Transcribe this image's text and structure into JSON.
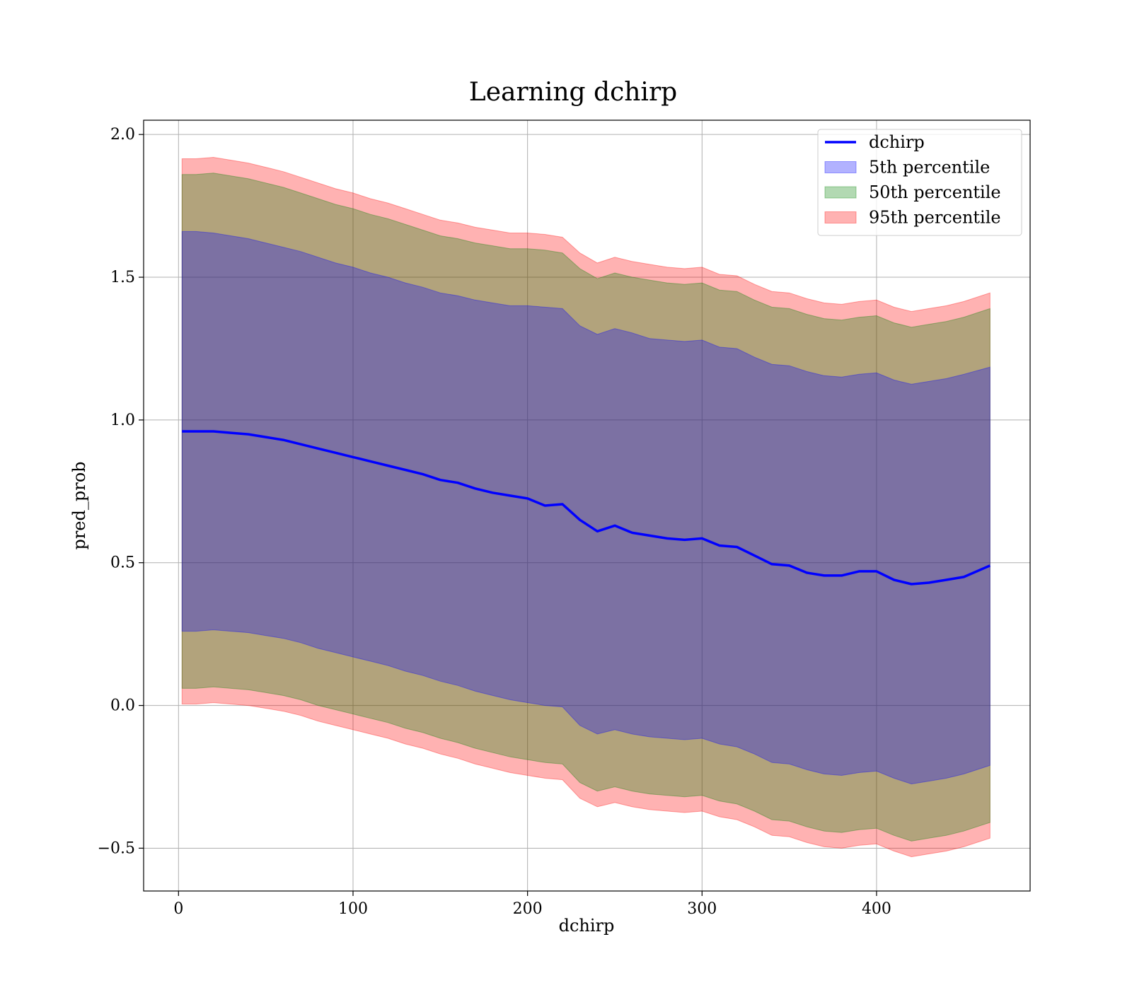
{
  "chart_data": {
    "type": "area",
    "title": "Learning dchirp",
    "xlabel": "dchirp",
    "ylabel": "pred_prob",
    "xlim": [
      -20,
      488
    ],
    "ylim": [
      -0.65,
      2.05
    ],
    "xticks": [
      0,
      100,
      200,
      300,
      400
    ],
    "yticks": [
      -0.5,
      0.0,
      0.5,
      1.0,
      1.5,
      2.0
    ],
    "xtick_labels": [
      "0",
      "100",
      "200",
      "300",
      "400"
    ],
    "ytick_labels": [
      "−0.5",
      "0.0",
      "0.5",
      "1.0",
      "1.5",
      "2.0"
    ],
    "grid": true,
    "legend_position": "top-right",
    "x": [
      2,
      10,
      20,
      30,
      40,
      50,
      60,
      70,
      80,
      90,
      100,
      110,
      120,
      130,
      140,
      150,
      160,
      170,
      180,
      190,
      200,
      210,
      220,
      230,
      240,
      250,
      260,
      270,
      280,
      290,
      300,
      310,
      320,
      330,
      340,
      350,
      360,
      370,
      380,
      390,
      400,
      410,
      420,
      430,
      440,
      450,
      465
    ],
    "series": [
      {
        "name": "dchirp",
        "kind": "line",
        "color": "#0000ff",
        "values": [
          0.96,
          0.96,
          0.96,
          0.955,
          0.95,
          0.94,
          0.93,
          0.915,
          0.9,
          0.885,
          0.87,
          0.855,
          0.84,
          0.825,
          0.81,
          0.79,
          0.78,
          0.76,
          0.745,
          0.735,
          0.725,
          0.7,
          0.705,
          0.65,
          0.61,
          0.63,
          0.605,
          0.595,
          0.585,
          0.58,
          0.585,
          0.56,
          0.555,
          0.525,
          0.495,
          0.49,
          0.465,
          0.455,
          0.455,
          0.47,
          0.47,
          0.44,
          0.425,
          0.43,
          0.44,
          0.45,
          0.49
        ]
      },
      {
        "name": "5th percentile",
        "kind": "band",
        "color": "#0000ff",
        "upper": [
          1.66,
          1.66,
          1.655,
          1.645,
          1.635,
          1.62,
          1.605,
          1.59,
          1.57,
          1.55,
          1.535,
          1.515,
          1.5,
          1.48,
          1.465,
          1.445,
          1.435,
          1.42,
          1.41,
          1.4,
          1.4,
          1.395,
          1.39,
          1.33,
          1.3,
          1.32,
          1.305,
          1.285,
          1.28,
          1.275,
          1.28,
          1.255,
          1.25,
          1.22,
          1.195,
          1.19,
          1.17,
          1.155,
          1.15,
          1.16,
          1.165,
          1.14,
          1.125,
          1.135,
          1.145,
          1.16,
          1.185
        ],
        "lower": [
          0.26,
          0.26,
          0.265,
          0.26,
          0.255,
          0.245,
          0.235,
          0.22,
          0.2,
          0.185,
          0.17,
          0.155,
          0.14,
          0.12,
          0.105,
          0.085,
          0.07,
          0.05,
          0.035,
          0.02,
          0.01,
          0.0,
          -0.005,
          -0.07,
          -0.1,
          -0.085,
          -0.1,
          -0.11,
          -0.115,
          -0.12,
          -0.115,
          -0.135,
          -0.145,
          -0.17,
          -0.2,
          -0.205,
          -0.225,
          -0.24,
          -0.245,
          -0.235,
          -0.23,
          -0.255,
          -0.275,
          -0.265,
          -0.255,
          -0.24,
          -0.21
        ]
      },
      {
        "name": "50th percentile",
        "kind": "band",
        "color": "#008000",
        "upper": [
          1.86,
          1.86,
          1.865,
          1.855,
          1.845,
          1.83,
          1.815,
          1.795,
          1.775,
          1.755,
          1.74,
          1.72,
          1.705,
          1.685,
          1.665,
          1.645,
          1.635,
          1.62,
          1.61,
          1.6,
          1.6,
          1.595,
          1.585,
          1.53,
          1.495,
          1.515,
          1.5,
          1.49,
          1.48,
          1.475,
          1.48,
          1.455,
          1.45,
          1.42,
          1.395,
          1.39,
          1.37,
          1.355,
          1.35,
          1.36,
          1.365,
          1.34,
          1.325,
          1.335,
          1.345,
          1.36,
          1.39
        ],
        "lower": [
          0.06,
          0.06,
          0.065,
          0.06,
          0.055,
          0.045,
          0.035,
          0.02,
          0.0,
          -0.015,
          -0.03,
          -0.045,
          -0.06,
          -0.08,
          -0.095,
          -0.115,
          -0.13,
          -0.15,
          -0.165,
          -0.18,
          -0.19,
          -0.2,
          -0.205,
          -0.27,
          -0.3,
          -0.285,
          -0.3,
          -0.31,
          -0.315,
          -0.32,
          -0.315,
          -0.335,
          -0.345,
          -0.37,
          -0.4,
          -0.405,
          -0.425,
          -0.44,
          -0.445,
          -0.435,
          -0.43,
          -0.455,
          -0.475,
          -0.465,
          -0.455,
          -0.44,
          -0.41
        ]
      },
      {
        "name": "95th percentile",
        "kind": "band",
        "color": "#ff0000",
        "upper": [
          1.915,
          1.915,
          1.92,
          1.91,
          1.9,
          1.885,
          1.87,
          1.85,
          1.83,
          1.81,
          1.795,
          1.775,
          1.76,
          1.74,
          1.72,
          1.7,
          1.69,
          1.675,
          1.665,
          1.655,
          1.655,
          1.65,
          1.64,
          1.585,
          1.55,
          1.57,
          1.555,
          1.545,
          1.535,
          1.53,
          1.535,
          1.51,
          1.505,
          1.475,
          1.45,
          1.445,
          1.425,
          1.41,
          1.405,
          1.415,
          1.42,
          1.395,
          1.38,
          1.39,
          1.4,
          1.415,
          1.445
        ],
        "lower": [
          0.005,
          0.005,
          0.01,
          0.005,
          0.0,
          -0.01,
          -0.02,
          -0.035,
          -0.055,
          -0.07,
          -0.085,
          -0.1,
          -0.115,
          -0.135,
          -0.15,
          -0.17,
          -0.185,
          -0.205,
          -0.22,
          -0.235,
          -0.245,
          -0.255,
          -0.26,
          -0.325,
          -0.355,
          -0.34,
          -0.355,
          -0.365,
          -0.37,
          -0.375,
          -0.37,
          -0.39,
          -0.4,
          -0.425,
          -0.455,
          -0.46,
          -0.48,
          -0.495,
          -0.5,
          -0.49,
          -0.485,
          -0.51,
          -0.53,
          -0.52,
          -0.51,
          -0.495,
          -0.465
        ]
      }
    ]
  }
}
